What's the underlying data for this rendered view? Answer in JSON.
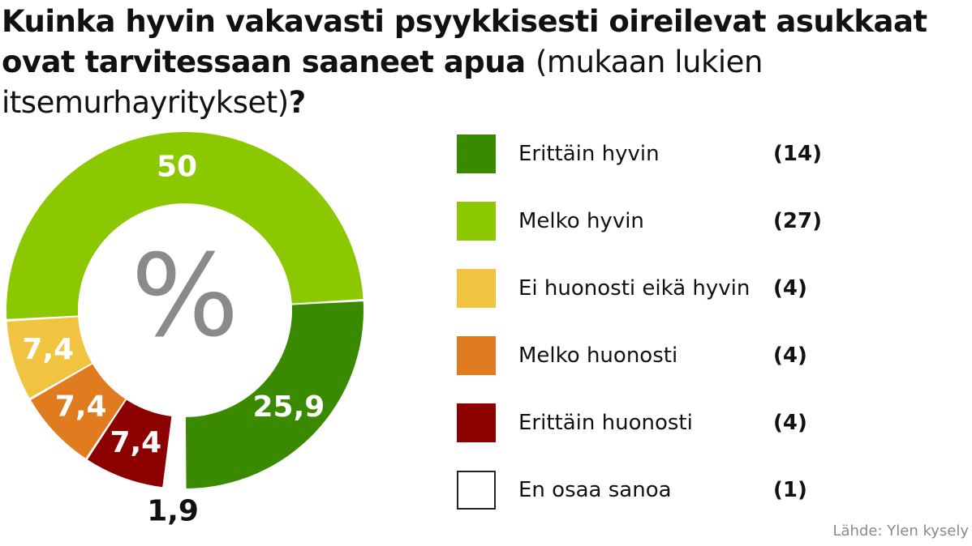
{
  "title_main": "Kuinka hyvin vakavasti psyykkisesti oireilevat asukkaat ovat tarvitessaan saaneet apua",
  "title_sub": "(mukaan lukien itsemurhayritykset)",
  "title_end": "?",
  "center_symbol": "%",
  "source": "Lähde: Ylen kysely",
  "chart_data": {
    "type": "pie",
    "categories": [
      "Erittäin hyvin",
      "Melko hyvin",
      "Ei huonosti eikä hyvin",
      "Melko huonosti",
      "Erittäin huonosti",
      "En osaa sanoa"
    ],
    "values": [
      25.9,
      50,
      7.4,
      7.4,
      7.4,
      1.9
    ],
    "value_labels": [
      "25,9",
      "50",
      "7,4",
      "7,4",
      "7,4",
      "1,9"
    ],
    "counts": [
      "(14)",
      "(27)",
      "(4)",
      "(4)",
      "(4)",
      "(1)"
    ],
    "colors": [
      "#3a8a00",
      "#8cc800",
      "#f0c440",
      "#e07b20",
      "#8c0000",
      "#ffffff"
    ],
    "label_colors": [
      "#ffffff",
      "#ffffff",
      "#ffffff",
      "#ffffff",
      "#ffffff",
      "#111111"
    ],
    "legend_position": "right",
    "donut": true
  }
}
